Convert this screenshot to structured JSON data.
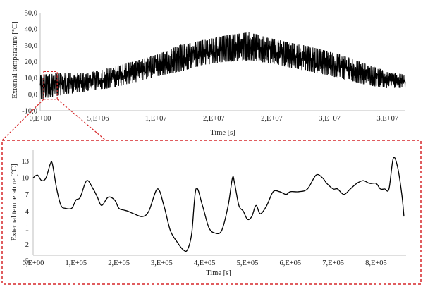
{
  "chart_data": [
    {
      "type": "line",
      "ylabel": "External temperature [°C]",
      "xlabel": "Time [s]",
      "ylim": [
        -10,
        50
      ],
      "xlim": [
        0,
        31536000
      ],
      "y_ticks": [
        "-10,0",
        "0,0",
        "10,0",
        "20,0",
        "30,0",
        "40,0",
        "50,0"
      ],
      "x_ticks": [
        {
          "value": 0,
          "label": "0,E+00"
        },
        {
          "value": 5000000,
          "label": "5,E+06"
        },
        {
          "value": 10000000,
          "label": "1,E+07"
        },
        {
          "value": 15000000,
          "label": "2,E+07"
        },
        {
          "value": 20000000,
          "label": "2,E+07"
        },
        {
          "value": 25000000,
          "label": "3,E+07"
        },
        {
          "value": 30000000,
          "label": "3,E+07"
        }
      ],
      "grid": false,
      "legend": "none",
      "series_envelope": {
        "x": [
          0,
          2000000,
          4000000,
          6000000,
          8000000,
          10000000,
          12000000,
          14000000,
          16000000,
          18000000,
          20000000,
          22000000,
          24000000,
          26000000,
          28000000,
          30000000,
          31536000
        ],
        "lower": [
          -3,
          0,
          2,
          4,
          7,
          11,
          14,
          18,
          20,
          21,
          19,
          16,
          13,
          10,
          6,
          4,
          4
        ],
        "upper": [
          12,
          13,
          13,
          16,
          20,
          24,
          30,
          33,
          36,
          38,
          34,
          31,
          28,
          24,
          19,
          14,
          12
        ]
      },
      "zoom_box": {
        "x": [
          0,
          864000
        ],
        "y": [
          -3,
          14
        ]
      },
      "color": "#000000"
    },
    {
      "type": "line",
      "ylabel": "External temperature [°C]",
      "xlabel": "Time [s]",
      "ylim": [
        -4,
        15
      ],
      "xlim": [
        0,
        870000
      ],
      "y_ticks": [
        "-5",
        "-2",
        "1",
        "4",
        "7",
        "10",
        "13"
      ],
      "x_ticks": [
        {
          "value": 0,
          "label": "0,E+00"
        },
        {
          "value": 100000,
          "label": "1,E+05"
        },
        {
          "value": 200000,
          "label": "2,E+05"
        },
        {
          "value": 300000,
          "label": "3,E+05"
        },
        {
          "value": 400000,
          "label": "4,E+05"
        },
        {
          "value": 500000,
          "label": "5,E+05"
        },
        {
          "value": 600000,
          "label": "6,E+05"
        },
        {
          "value": 700000,
          "label": "7,E+05"
        },
        {
          "value": 800000,
          "label": "8,E+05"
        }
      ],
      "grid": false,
      "legend": "none",
      "x": [
        0,
        10000,
        20000,
        30000,
        40000,
        45000,
        55000,
        65000,
        75000,
        90000,
        100000,
        110000,
        125000,
        140000,
        150000,
        160000,
        175000,
        190000,
        200000,
        210000,
        220000,
        235000,
        255000,
        270000,
        290000,
        305000,
        320000,
        335000,
        350000,
        360000,
        370000,
        380000,
        395000,
        410000,
        425000,
        440000,
        455000,
        465000,
        470000,
        480000,
        490000,
        500000,
        510000,
        520000,
        530000,
        545000,
        560000,
        575000,
        590000,
        600000,
        620000,
        640000,
        660000,
        675000,
        685000,
        700000,
        710000,
        725000,
        740000,
        755000,
        770000,
        785000,
        800000,
        810000,
        820000,
        830000,
        840000,
        850000,
        860000,
        865000
      ],
      "y": [
        10,
        10.5,
        9.5,
        10,
        12.5,
        12.5,
        8,
        5,
        4.5,
        4.5,
        6,
        6.5,
        9.5,
        8,
        6.5,
        5,
        6.5,
        6,
        4.5,
        4.2,
        4,
        3.5,
        3,
        4,
        8,
        5,
        0.5,
        -1.5,
        -3,
        -3,
        0,
        8,
        5,
        1,
        0,
        0.5,
        5,
        10,
        9,
        5,
        4,
        2.5,
        3,
        5,
        3.5,
        5,
        7.5,
        7.5,
        7,
        7.5,
        7.5,
        8,
        10.5,
        10,
        9,
        8,
        8,
        7,
        8,
        9,
        9.5,
        9,
        9,
        8,
        8,
        8,
        13.5,
        12,
        7,
        3
      ]
    }
  ]
}
